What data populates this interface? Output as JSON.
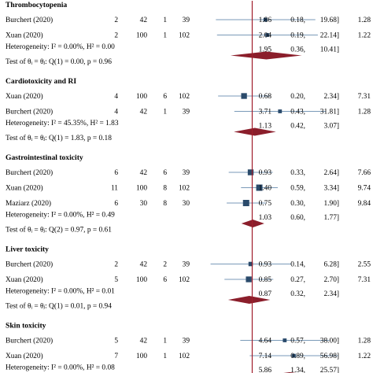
{
  "chart_data": {
    "type": "forest",
    "title": "",
    "xlabel": "",
    "ylabel": "",
    "x_scale": "log",
    "xlim": [
      0.1,
      60
    ],
    "reference_line": 1,
    "grid": false,
    "colors": {
      "study_marker": "#2a4a6b",
      "ci_line": "#7a9ab8",
      "reference_line": "#a01e2b",
      "pooled_diamond": "#8b1e2b"
    },
    "groups": [
      {
        "name": "Thrombocytopenia",
        "studies": [
          {
            "study": "Burchert (2020)",
            "events_treat": "2",
            "total_treat": "42",
            "events_ctrl": "1",
            "total_ctrl": "39",
            "or": 1.86,
            "lo": 0.18,
            "hi": 19.68,
            "or_text": "1.86",
            "lo_text": "0.18,",
            "hi_text": "19.68]",
            "weight": "1.28"
          },
          {
            "study": "Xuan (2020)",
            "events_treat": "2",
            "total_treat": "100",
            "events_ctrl": "1",
            "total_ctrl": "102",
            "or": 2.04,
            "lo": 0.19,
            "hi": 22.14,
            "or_text": "2.04",
            "lo_text": "0.19,",
            "hi_text": "22.14]",
            "weight": "1.22"
          }
        ],
        "heterogeneity": "Heterogeneity: I² = 0.00%, H² = 0.00",
        "pooled": {
          "or": 1.95,
          "lo": 0.36,
          "hi": 10.41,
          "or_text": "1.95",
          "lo_text": "0.36,",
          "hi_text": "10.41]"
        },
        "test": "Test of θᵢ = θⱼ: Q(1) = 0.00, p = 0.96"
      },
      {
        "name": "Cardiotoxicity and RI",
        "studies": [
          {
            "study": "Xuan (2020)",
            "events_treat": "4",
            "total_treat": "100",
            "events_ctrl": "6",
            "total_ctrl": "102",
            "or": 0.68,
            "lo": 0.2,
            "hi": 2.34,
            "or_text": "0.68",
            "lo_text": "0.20,",
            "hi_text": "2.34]",
            "weight": "7.31"
          },
          {
            "study": "Burchert (2020)",
            "events_treat": "4",
            "total_treat": "42",
            "events_ctrl": "1",
            "total_ctrl": "39",
            "or": 3.71,
            "lo": 0.43,
            "hi": 31.81,
            "or_text": "3.71",
            "lo_text": "0.43,",
            "hi_text": "31.81]",
            "weight": "1.28"
          }
        ],
        "heterogeneity": "Heterogeneity: I² = 45.35%, H² = 1.83",
        "pooled": {
          "or": 1.13,
          "lo": 0.42,
          "hi": 3.07,
          "or_text": "1.13",
          "lo_text": "0.42,",
          "hi_text": "3.07]"
        },
        "test": "Test of θᵢ = θⱼ: Q(1) = 1.83, p = 0.18"
      },
      {
        "name": "Gastrointestinal toxicity",
        "studies": [
          {
            "study": "Burchert (2020)",
            "events_treat": "6",
            "total_treat": "42",
            "events_ctrl": "6",
            "total_ctrl": "39",
            "or": 0.93,
            "lo": 0.33,
            "hi": 2.64,
            "or_text": "0.93",
            "lo_text": "0.33,",
            "hi_text": "2.64]",
            "weight": "7.66"
          },
          {
            "study": "Xuan (2020)",
            "events_treat": "11",
            "total_treat": "100",
            "events_ctrl": "8",
            "total_ctrl": "102",
            "or": 1.4,
            "lo": 0.59,
            "hi": 3.34,
            "or_text": "1.40",
            "lo_text": "0.59,",
            "hi_text": "3.34]",
            "weight": "9.74"
          },
          {
            "study": "Maziarz (2020)",
            "events_treat": "6",
            "total_treat": "30",
            "events_ctrl": "8",
            "total_ctrl": "30",
            "or": 0.75,
            "lo": 0.3,
            "hi": 1.9,
            "or_text": "0.75",
            "lo_text": "0.30,",
            "hi_text": "1.90]",
            "weight": "9.84"
          }
        ],
        "heterogeneity": "Heterogeneity: I² = 0.00%, H² = 0.49",
        "pooled": {
          "or": 1.03,
          "lo": 0.6,
          "hi": 1.77,
          "or_text": "1.03",
          "lo_text": "0.60,",
          "hi_text": "1.77]"
        },
        "test": "Test of θᵢ = θⱼ: Q(2) = 0.97, p = 0.61"
      },
      {
        "name": "Liver toxicity",
        "studies": [
          {
            "study": "Burchert (2020)",
            "events_treat": "2",
            "total_treat": "42",
            "events_ctrl": "2",
            "total_ctrl": "39",
            "or": 0.93,
            "lo": 0.14,
            "hi": 6.28,
            "or_text": "0.93",
            "lo_text": "0.14,",
            "hi_text": "6.28]",
            "weight": "2.55"
          },
          {
            "study": "Xuan (2020)",
            "events_treat": "5",
            "total_treat": "100",
            "events_ctrl": "6",
            "total_ctrl": "102",
            "or": 0.85,
            "lo": 0.27,
            "hi": 2.7,
            "or_text": "0.85",
            "lo_text": "0.27,",
            "hi_text": "2.70]",
            "weight": "7.31"
          }
        ],
        "heterogeneity": "Heterogeneity: I² = 0.00%, H² = 0.01",
        "pooled": {
          "or": 0.87,
          "lo": 0.32,
          "hi": 2.34,
          "or_text": "0.87",
          "lo_text": "0.32,",
          "hi_text": "2.34]"
        },
        "test": "Test of θᵢ = θⱼ: Q(1) = 0.01, p = 0.94"
      },
      {
        "name": "Skin toxicity",
        "studies": [
          {
            "study": "Burchert (2020)",
            "events_treat": "5",
            "total_treat": "42",
            "events_ctrl": "1",
            "total_ctrl": "39",
            "or": 4.64,
            "lo": 0.57,
            "hi": 38.0,
            "or_text": "4.64",
            "lo_text": "0.57,",
            "hi_text": "38.00]",
            "weight": "1.28"
          },
          {
            "study": "Xuan (2020)",
            "events_treat": "7",
            "total_treat": "100",
            "events_ctrl": "1",
            "total_ctrl": "102",
            "or": 7.14,
            "lo": 0.89,
            "hi": 56.98,
            "or_text": "7.14",
            "lo_text": "0.89,",
            "hi_text": "56.98]",
            "weight": "1.22"
          }
        ],
        "heterogeneity": "Heterogeneity: I² = 0.00%, H² = 0.08",
        "pooled": {
          "or": 5.86,
          "lo": 1.34,
          "hi": 25.57,
          "or_text": "5.86",
          "lo_text": "1.34,",
          "hi_text": "25.57]"
        },
        "test": "Test of θᵢ = θⱼ: Q(1) = 0.08, p = 0.77"
      }
    ]
  }
}
